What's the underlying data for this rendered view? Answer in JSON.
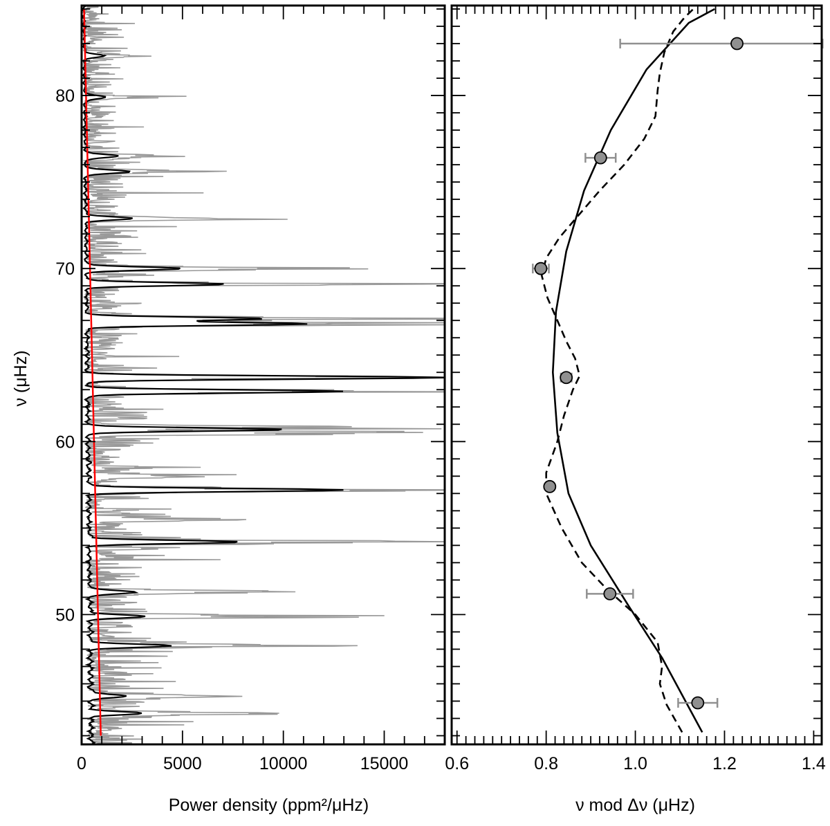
{
  "chart_data": [
    {
      "type": "line",
      "orientation": "horizontal-power-vs-vertical-frequency",
      "xlabel": "Power density (ppm²/μHz)",
      "ylabel": "ν (μHz)",
      "xlim": [
        0,
        18000
      ],
      "ylim": [
        42.5,
        85.2
      ],
      "x_ticks": [
        0,
        5000,
        10000,
        15000
      ],
      "x_tick_labels": [
        "0",
        "5000",
        "10000",
        "15000"
      ],
      "y_ticks": [
        50,
        60,
        70,
        80
      ],
      "y_tick_labels": [
        "50",
        "60",
        "70",
        "80"
      ],
      "grid": false,
      "legend": "none",
      "series": [
        {
          "style": "raw",
          "color": "#999999",
          "background_peak_level": 1400,
          "modes": [
            {
              "nu": 44.3,
              "peak": 7400
            },
            {
              "nu": 45.3,
              "peak": 6000
            },
            {
              "nu": 48.2,
              "peak": 10200
            },
            {
              "nu": 49.9,
              "peak": 14700
            },
            {
              "nu": 51.3,
              "peak": 9200
            },
            {
              "nu": 54.2,
              "peak": 18000
            },
            {
              "nu": 55.5,
              "peak": 7000
            },
            {
              "nu": 57.2,
              "peak": 18000
            },
            {
              "nu": 58.0,
              "peak": 6000
            },
            {
              "nu": 60.5,
              "peak": 18000
            },
            {
              "nu": 60.8,
              "peak": 17800
            },
            {
              "nu": 62.9,
              "peak": 18000
            },
            {
              "nu": 63.7,
              "peak": 18000
            },
            {
              "nu": 66.8,
              "peak": 18000
            },
            {
              "nu": 67.1,
              "peak": 18000
            },
            {
              "nu": 69.1,
              "peak": 14800
            },
            {
              "nu": 70.0,
              "peak": 12800
            },
            {
              "nu": 72.9,
              "peak": 9300
            },
            {
              "nu": 75.6,
              "peak": 5200
            },
            {
              "nu": 76.5,
              "peak": 4300
            },
            {
              "nu": 79.9,
              "peak": 3200
            },
            {
              "nu": 82.3,
              "peak": 2900
            }
          ]
        },
        {
          "style": "smoothed",
          "color": "#000000",
          "modes": [
            {
              "nu": 44.3,
              "peak": 2500
            },
            {
              "nu": 45.3,
              "peak": 1800
            },
            {
              "nu": 48.2,
              "peak": 4000
            },
            {
              "nu": 49.9,
              "peak": 2700
            },
            {
              "nu": 51.3,
              "peak": 2400
            },
            {
              "nu": 54.2,
              "peak": 7500
            },
            {
              "nu": 57.2,
              "peak": 12700
            },
            {
              "nu": 60.7,
              "peak": 9900
            },
            {
              "nu": 62.9,
              "peak": 12700
            },
            {
              "nu": 63.7,
              "peak": 17800
            },
            {
              "nu": 66.8,
              "peak": 10900
            },
            {
              "nu": 67.1,
              "peak": 8900
            },
            {
              "nu": 69.1,
              "peak": 6900
            },
            {
              "nu": 70.0,
              "peak": 4800
            },
            {
              "nu": 72.9,
              "peak": 2300
            },
            {
              "nu": 75.6,
              "peak": 2300
            },
            {
              "nu": 76.5,
              "peak": 1700
            },
            {
              "nu": 79.9,
              "peak": 1100
            },
            {
              "nu": 82.3,
              "peak": 1000
            }
          ]
        },
        {
          "style": "background-fit",
          "color": "#ff0000",
          "points": [
            {
              "nu": 43.0,
              "power": 950
            },
            {
              "nu": 85.0,
              "power": 120
            }
          ]
        }
      ]
    },
    {
      "type": "scatter",
      "orientation": "horizontal-value-vs-vertical-frequency",
      "xlabel": "ν mod Δν (μHz)",
      "ylabel": "",
      "xlim": [
        0.588,
        1.418
      ],
      "ylim": [
        42.5,
        85.2
      ],
      "x_ticks": [
        0.6,
        0.8,
        1.0,
        1.2,
        1.4
      ],
      "x_tick_labels": [
        "0.6",
        "0.8",
        "1.0",
        "1.2",
        "1.4"
      ],
      "grid": false,
      "legend": "none",
      "marker_color": "#909090",
      "errorbar_color": "#909090",
      "points": [
        {
          "x": 1.228,
          "y": 83.0,
          "xerr_low": 0.262,
          "xerr_high": 0.192
        },
        {
          "x": 0.922,
          "y": 76.4,
          "xerr_low": 0.034,
          "xerr_high": 0.034
        },
        {
          "x": 0.788,
          "y": 70.0,
          "xerr_low": 0.018,
          "xerr_high": 0.018
        },
        {
          "x": 0.845,
          "y": 63.7,
          "xerr_low": 0.012,
          "xerr_high": 0.012
        },
        {
          "x": 0.808,
          "y": 57.4,
          "xerr_low": 0.008,
          "xerr_high": 0.008
        },
        {
          "x": 0.943,
          "y": 51.2,
          "xerr_low": 0.052,
          "xerr_high": 0.052
        },
        {
          "x": 1.14,
          "y": 44.9,
          "xerr_low": 0.044,
          "xerr_high": 0.044
        }
      ],
      "curves": [
        {
          "style": "solid",
          "points": [
            {
              "x": 1.15,
              "y": 43.2
            },
            {
              "x": 1.06,
              "y": 47.5
            },
            {
              "x": 0.985,
              "y": 50.5
            },
            {
              "x": 0.9,
              "y": 54.0
            },
            {
              "x": 0.85,
              "y": 57.0
            },
            {
              "x": 0.825,
              "y": 60.5
            },
            {
              "x": 0.815,
              "y": 64.0
            },
            {
              "x": 0.822,
              "y": 67.5
            },
            {
              "x": 0.845,
              "y": 71.0
            },
            {
              "x": 0.885,
              "y": 74.5
            },
            {
              "x": 0.945,
              "y": 78.0
            },
            {
              "x": 1.025,
              "y": 81.5
            },
            {
              "x": 1.12,
              "y": 84.2
            },
            {
              "x": 1.178,
              "y": 85.0
            }
          ]
        },
        {
          "style": "dashed",
          "points": [
            {
              "x": 1.105,
              "y": 43.2
            },
            {
              "x": 1.07,
              "y": 44.8
            },
            {
              "x": 1.055,
              "y": 46.0
            },
            {
              "x": 1.06,
              "y": 47.0
            },
            {
              "x": 1.05,
              "y": 48.4
            },
            {
              "x": 1.0,
              "y": 50.0
            },
            {
              "x": 0.935,
              "y": 51.5
            },
            {
              "x": 0.88,
              "y": 53.0
            },
            {
              "x": 0.835,
              "y": 55.0
            },
            {
              "x": 0.8,
              "y": 57.0
            },
            {
              "x": 0.8,
              "y": 58.2
            },
            {
              "x": 0.825,
              "y": 60.0
            },
            {
              "x": 0.84,
              "y": 61.5
            },
            {
              "x": 0.86,
              "y": 63.0
            },
            {
              "x": 0.875,
              "y": 63.8
            },
            {
              "x": 0.865,
              "y": 64.8
            },
            {
              "x": 0.845,
              "y": 65.8
            },
            {
              "x": 0.825,
              "y": 67.0
            },
            {
              "x": 0.803,
              "y": 68.3
            },
            {
              "x": 0.79,
              "y": 69.6
            },
            {
              "x": 0.8,
              "y": 70.6
            },
            {
              "x": 0.83,
              "y": 71.8
            },
            {
              "x": 0.87,
              "y": 73.0
            },
            {
              "x": 0.92,
              "y": 74.5
            },
            {
              "x": 0.975,
              "y": 76.0
            },
            {
              "x": 1.02,
              "y": 77.5
            },
            {
              "x": 1.045,
              "y": 78.8
            },
            {
              "x": 1.05,
              "y": 80.3
            },
            {
              "x": 1.055,
              "y": 81.3
            },
            {
              "x": 1.065,
              "y": 82.5
            },
            {
              "x": 1.085,
              "y": 83.7
            },
            {
              "x": 1.11,
              "y": 84.5
            },
            {
              "x": 1.13,
              "y": 85.0
            }
          ]
        }
      ]
    }
  ]
}
